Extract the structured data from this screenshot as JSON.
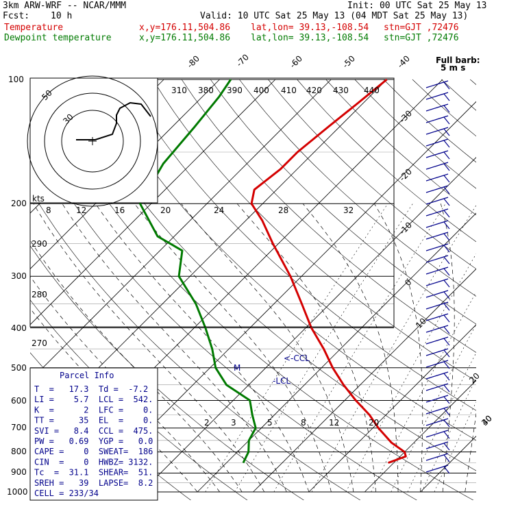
{
  "header": {
    "model": "3km ARW-WRF -- NCAR/MMM",
    "init": "Init: 00 UTC Sat 25 May 13",
    "fcst_label": "Fcst:",
    "fcst_value": "10 h",
    "valid": "Valid: 10 UTC Sat 25 May 13 (04 MDT Sat 25 May 13)"
  },
  "series_info": [
    {
      "name": "Temperature",
      "loc": "x,y=176.11,504.86",
      "latlon": "lat,lon= 39.13,-108.54",
      "stn": "stn=GJT ,72476",
      "color": "#d40000"
    },
    {
      "name": "Dewpoint temperature",
      "loc": "x,y=176.11,504.86",
      "latlon": "lat,lon= 39.13,-108.54",
      "stn": "stn=GJT ,72476",
      "color": "#007a00"
    }
  ],
  "barb_legend": {
    "line1": "Full barb:",
    "line2": "5 m s"
  },
  "hodograph": {
    "unit": "kts",
    "rings": [
      "50",
      "30"
    ]
  },
  "pressure_labels": [
    "100",
    "200",
    "300",
    "400",
    "500",
    "600",
    "700",
    "800",
    "900",
    "1000"
  ],
  "theta_labels": [
    "310",
    "380",
    "390",
    "400",
    "410",
    "420",
    "430",
    "440"
  ],
  "mixing_ratio_top": [
    "8",
    "12",
    "16",
    "20",
    "24",
    "28",
    "32"
  ],
  "theta_left": [
    "290",
    "280",
    "270"
  ],
  "mixing_ratio_low": [
    "2",
    "3",
    "5",
    "8",
    "12",
    "20"
  ],
  "isotherm_labels": [
    "-80",
    "-70",
    "-60",
    "-50",
    "-40",
    "-30",
    "-20",
    "-10",
    "0",
    "10",
    "20",
    "30",
    "40"
  ],
  "ccl_label": "<-CCL",
  "lcl_label": "LCL",
  "m_label": "M",
  "parcel_info": {
    "title": "Parcel Info",
    "rows": [
      "T  =   17.3  Td =  -7.2",
      "LI =    5.7  LCL =  542.",
      "K  =      2  LFC =    0.",
      "TT =     35  EL  =    0.",
      "SVI =   8.4  CCL =  475.",
      "PW =   0.69  YGP =   0.0",
      "CAPE =    0  SWEAT=  186",
      "CIN  =    0  HWBZ= 3132.",
      "Tc  =  31.1  SHEAR=  51.",
      "SREH =   39  LAPSE=  8.2",
      "CELL = 233/34"
    ]
  },
  "chart_data": {
    "type": "line",
    "title": "",
    "y_axis": "pressure (hPa), log scale",
    "ylim": [
      1000,
      100
    ],
    "xlim_celsius_at_1000hPa": [
      -40,
      40
    ],
    "series": [
      {
        "name": "Temperature",
        "color": "#d40000",
        "units": "C",
        "points": [
          [
            850,
            19
          ],
          [
            820,
            21
          ],
          [
            800,
            20
          ],
          [
            760,
            16
          ],
          [
            700,
            11
          ],
          [
            650,
            7
          ],
          [
            600,
            2
          ],
          [
            550,
            -3
          ],
          [
            500,
            -8
          ],
          [
            450,
            -13
          ],
          [
            400,
            -19
          ],
          [
            350,
            -25
          ],
          [
            300,
            -32
          ],
          [
            250,
            -41
          ],
          [
            220,
            -47
          ],
          [
            200,
            -52
          ],
          [
            185,
            -54
          ],
          [
            165,
            -53
          ],
          [
            150,
            -53
          ],
          [
            130,
            -52
          ],
          [
            115,
            -51
          ],
          [
            100,
            -50
          ]
        ]
      },
      {
        "name": "Dewpoint temperature",
        "color": "#007a00",
        "units": "C",
        "points": [
          [
            850,
            -7
          ],
          [
            800,
            -8
          ],
          [
            750,
            -10
          ],
          [
            700,
            -11
          ],
          [
            650,
            -14
          ],
          [
            600,
            -17
          ],
          [
            550,
            -24
          ],
          [
            500,
            -29
          ],
          [
            450,
            -33
          ],
          [
            400,
            -38
          ],
          [
            350,
            -44
          ],
          [
            300,
            -52
          ],
          [
            260,
            -56
          ],
          [
            240,
            -63
          ],
          [
            200,
            -72
          ],
          [
            160,
            -75
          ],
          [
            130,
            -76
          ],
          [
            110,
            -77
          ],
          [
            100,
            -78
          ]
        ]
      }
    ]
  }
}
